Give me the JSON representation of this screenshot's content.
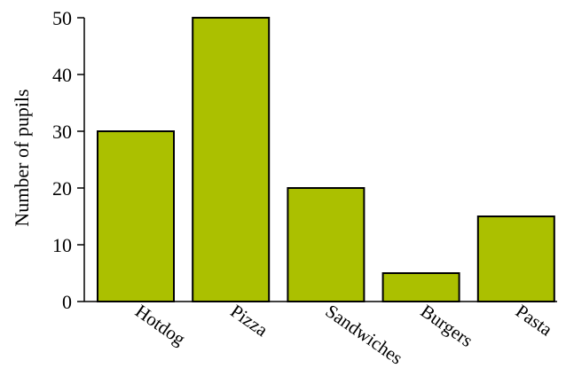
{
  "chart_data": {
    "type": "bar",
    "title": "",
    "xlabel": "",
    "ylabel": "Number of pupils",
    "categories": [
      "Hotdog",
      "Pizza",
      "Sandwiches",
      "Burgers",
      "Pasta"
    ],
    "values": [
      30,
      50,
      20,
      5,
      15
    ],
    "ylim": [
      0,
      50
    ],
    "yticks": [
      0,
      10,
      20,
      30,
      40,
      50
    ],
    "ytick_labels": [
      "0",
      "10",
      "20",
      "30",
      "40",
      "50"
    ],
    "grid": false,
    "legend": "none",
    "colors": {
      "bar": "#abc000",
      "stroke": "#000000"
    }
  }
}
